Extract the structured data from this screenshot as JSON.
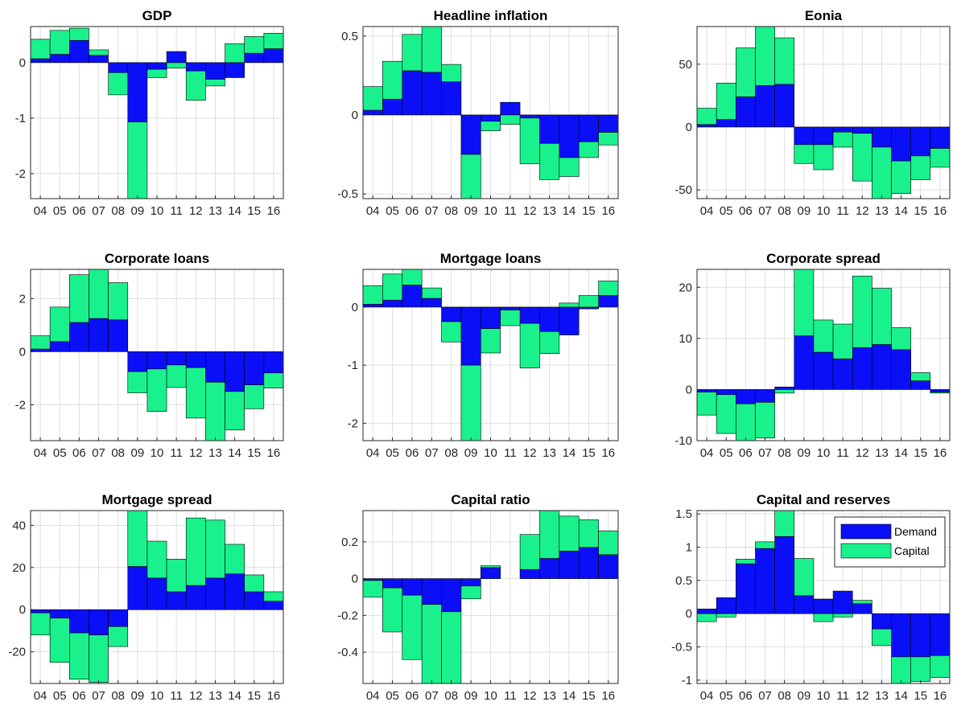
{
  "chart_data": [
    {
      "type": "bar",
      "stacked": true,
      "title": "GDP",
      "categories": [
        "04",
        "05",
        "06",
        "07",
        "08",
        "09",
        "10",
        "11",
        "12",
        "13",
        "14",
        "15",
        "16"
      ],
      "ylim": [
        -2.45,
        0.65
      ],
      "yticks": [
        -2,
        -1,
        0
      ],
      "yticklabels": [
        "-2",
        "-1",
        "0"
      ],
      "grid": true,
      "series": [
        {
          "name": "Demand",
          "values": [
            0.07,
            0.15,
            0.4,
            0.13,
            -0.18,
            -1.07,
            -0.12,
            0.2,
            -0.15,
            -0.3,
            -0.27,
            0.17,
            0.25
          ]
        },
        {
          "name": "Capital",
          "values": [
            0.35,
            0.43,
            0.22,
            0.1,
            -0.4,
            -1.38,
            -0.15,
            -0.1,
            -0.53,
            -0.12,
            0.34,
            0.3,
            0.28
          ]
        }
      ]
    },
    {
      "type": "bar",
      "stacked": true,
      "title": "Headline inflation",
      "categories": [
        "04",
        "05",
        "06",
        "07",
        "08",
        "09",
        "10",
        "11",
        "12",
        "13",
        "14",
        "15",
        "16"
      ],
      "ylim": [
        -0.53,
        0.56
      ],
      "yticks": [
        -0.5,
        0,
        0.5
      ],
      "yticklabels": [
        "-0.5",
        "0",
        "0.5"
      ],
      "grid": true,
      "series": [
        {
          "name": "Demand",
          "values": [
            0.03,
            0.1,
            0.28,
            0.27,
            0.21,
            -0.25,
            -0.04,
            0.08,
            -0.02,
            -0.18,
            -0.27,
            -0.17,
            -0.11
          ]
        },
        {
          "name": "Capital",
          "values": [
            0.15,
            0.24,
            0.23,
            0.29,
            0.11,
            -0.29,
            -0.06,
            -0.06,
            -0.29,
            -0.23,
            -0.12,
            -0.1,
            -0.08
          ]
        }
      ]
    },
    {
      "type": "bar",
      "stacked": true,
      "title": "Eonia",
      "categories": [
        "04",
        "05",
        "06",
        "07",
        "08",
        "09",
        "10",
        "11",
        "12",
        "13",
        "14",
        "15",
        "16"
      ],
      "ylim": [
        -57,
        80
      ],
      "yticks": [
        -50,
        0,
        50
      ],
      "yticklabels": [
        "-50",
        "0",
        "50"
      ],
      "grid": true,
      "series": [
        {
          "name": "Demand",
          "values": [
            2,
            6,
            24,
            33,
            34,
            -14,
            -14,
            -4,
            -5,
            -16,
            -27,
            -23,
            -17
          ]
        },
        {
          "name": "Capital",
          "values": [
            13,
            29,
            39,
            47,
            37,
            -15,
            -20,
            -12,
            -38,
            -41,
            -26,
            -19,
            -15
          ]
        }
      ]
    },
    {
      "type": "bar",
      "stacked": true,
      "title": "Corporate loans",
      "categories": [
        "04",
        "05",
        "06",
        "07",
        "08",
        "09",
        "10",
        "11",
        "12",
        "13",
        "14",
        "15",
        "16"
      ],
      "ylim": [
        -3.35,
        3.1
      ],
      "yticks": [
        -2,
        0,
        2
      ],
      "yticklabels": [
        "-2",
        "0",
        "2"
      ],
      "grid": true,
      "series": [
        {
          "name": "Demand",
          "values": [
            0.1,
            0.38,
            1.1,
            1.25,
            1.2,
            -0.75,
            -0.65,
            -0.5,
            -0.6,
            -1.15,
            -1.5,
            -1.25,
            -0.8
          ]
        },
        {
          "name": "Capital",
          "values": [
            0.5,
            1.3,
            1.8,
            1.85,
            1.4,
            -0.8,
            -1.6,
            -0.85,
            -1.9,
            -2.2,
            -1.45,
            -0.9,
            -0.57
          ]
        }
      ]
    },
    {
      "type": "bar",
      "stacked": true,
      "title": "Mortgage loans",
      "categories": [
        "04",
        "05",
        "06",
        "07",
        "08",
        "09",
        "10",
        "11",
        "12",
        "13",
        "14",
        "15",
        "16"
      ],
      "ylim": [
        -2.3,
        0.65
      ],
      "yticks": [
        -2,
        -1,
        0
      ],
      "yticklabels": [
        "-2",
        "-1",
        "0"
      ],
      "grid": true,
      "series": [
        {
          "name": "Demand",
          "values": [
            0.05,
            0.12,
            0.38,
            0.15,
            -0.25,
            -1.0,
            -0.37,
            -0.05,
            -0.28,
            -0.42,
            -0.48,
            -0.03,
            0.2
          ]
        },
        {
          "name": "Capital",
          "values": [
            0.32,
            0.45,
            0.27,
            0.18,
            -0.35,
            -1.3,
            -0.42,
            -0.27,
            -0.77,
            -0.38,
            0.07,
            0.2,
            0.25
          ]
        }
      ]
    },
    {
      "type": "bar",
      "stacked": true,
      "title": "Corporate spread",
      "categories": [
        "04",
        "05",
        "06",
        "07",
        "08",
        "09",
        "10",
        "11",
        "12",
        "13",
        "14",
        "15",
        "16"
      ],
      "ylim": [
        -10,
        23.5
      ],
      "yticks": [
        -10,
        0,
        10,
        20
      ],
      "yticklabels": [
        "-10",
        "0",
        "10",
        "20"
      ],
      "grid": true,
      "series": [
        {
          "name": "Demand",
          "values": [
            -0.5,
            -1,
            -2.8,
            -2.5,
            0.5,
            10.5,
            7.3,
            6,
            8.2,
            8.8,
            7.8,
            1.7,
            -0.5
          ]
        },
        {
          "name": "Capital",
          "values": [
            -4.5,
            -7.6,
            -7.2,
            -7,
            -0.7,
            13,
            6.3,
            6.8,
            14,
            11,
            4.3,
            1.6,
            -0.2
          ]
        }
      ]
    },
    {
      "type": "bar",
      "stacked": true,
      "title": "Mortgage spread",
      "categories": [
        "04",
        "05",
        "06",
        "07",
        "08",
        "09",
        "10",
        "11",
        "12",
        "13",
        "14",
        "15",
        "16"
      ],
      "ylim": [
        -35,
        47
      ],
      "yticks": [
        -20,
        0,
        20,
        40
      ],
      "yticklabels": [
        "-20",
        "0",
        "20",
        "40"
      ],
      "grid": true,
      "series": [
        {
          "name": "Demand",
          "values": [
            -1.5,
            -4,
            -11,
            -12,
            -8,
            20.5,
            15,
            8.5,
            11.5,
            15,
            17,
            8.5,
            4
          ]
        },
        {
          "name": "Capital",
          "values": [
            -10.5,
            -21,
            -22,
            -22.5,
            -9.5,
            26.5,
            17.5,
            15.5,
            32,
            27.5,
            14,
            8,
            4.5
          ]
        }
      ]
    },
    {
      "type": "bar",
      "stacked": true,
      "title": "Capital ratio",
      "categories": [
        "04",
        "05",
        "06",
        "07",
        "08",
        "09",
        "10",
        "11",
        "12",
        "13",
        "14",
        "15",
        "16"
      ],
      "ylim": [
        -0.57,
        0.37
      ],
      "yticks": [
        -0.4,
        -0.2,
        0,
        0.2
      ],
      "yticklabels": [
        "-0.4",
        "-0.2",
        "0",
        "0.2"
      ],
      "grid": true,
      "series": [
        {
          "name": "Demand",
          "values": [
            -0.01,
            -0.05,
            -0.09,
            -0.14,
            -0.18,
            -0.04,
            0.06,
            0.0,
            0.05,
            0.11,
            0.15,
            0.17,
            0.13
          ]
        },
        {
          "name": "Capital",
          "values": [
            -0.09,
            -0.24,
            -0.35,
            -0.43,
            -0.39,
            -0.07,
            0.01,
            0.0,
            0.19,
            0.26,
            0.19,
            0.15,
            0.13
          ]
        }
      ]
    },
    {
      "type": "bar",
      "stacked": true,
      "title": "Capital and reserves",
      "categories": [
        "04",
        "05",
        "06",
        "07",
        "08",
        "09",
        "10",
        "11",
        "12",
        "13",
        "14",
        "15",
        "16"
      ],
      "ylim": [
        -1.05,
        1.55
      ],
      "yticks": [
        -1,
        -0.5,
        0,
        0.5,
        1,
        1.5
      ],
      "yticklabels": [
        "-1",
        "-0.5",
        "0",
        "0.5",
        "1",
        "1.5"
      ],
      "grid": true,
      "legend": {
        "position": "top-right",
        "entries": [
          "Demand",
          "Capital"
        ]
      },
      "series": [
        {
          "name": "Demand",
          "values": [
            0.07,
            0.24,
            0.75,
            0.98,
            1.16,
            0.27,
            0.22,
            0.34,
            0.15,
            -0.23,
            -0.65,
            -0.65,
            -0.63
          ]
        },
        {
          "name": "Capital",
          "values": [
            -0.12,
            -0.05,
            0.07,
            0.1,
            0.42,
            0.56,
            -0.12,
            -0.05,
            0.05,
            -0.25,
            -0.45,
            -0.37,
            -0.33
          ]
        }
      ]
    }
  ],
  "colors": {
    "demand": "#0a0ff7",
    "capital": "#19f28c",
    "grid": "#dedede",
    "axis": "#262626"
  }
}
